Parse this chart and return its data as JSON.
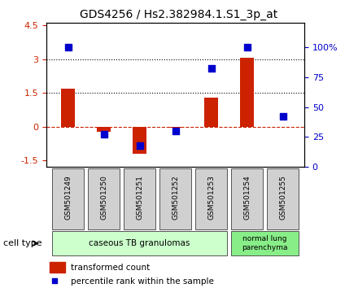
{
  "title": "GDS4256 / Hs2.382984.1.S1_3p_at",
  "samples": [
    "GSM501249",
    "GSM501250",
    "GSM501251",
    "GSM501252",
    "GSM501253",
    "GSM501254",
    "GSM501255"
  ],
  "transformed_counts": [
    1.7,
    -0.25,
    -1.2,
    -0.05,
    1.3,
    3.05,
    -0.02
  ],
  "percentile_ranks": [
    100,
    27,
    18,
    30,
    82,
    100,
    42
  ],
  "ylim_left": [
    -1.8,
    4.6
  ],
  "ylim_right": [
    0,
    120
  ],
  "yticks_left": [
    -1.5,
    0,
    1.5,
    3,
    4.5
  ],
  "yticks_right": [
    0,
    25,
    50,
    75,
    100
  ],
  "ytick_labels_left": [
    "-1.5",
    "0",
    "1.5",
    "3",
    "4.5"
  ],
  "ytick_labels_right": [
    "0",
    "25",
    "50",
    "75",
    "100%"
  ],
  "hlines": [
    3.0,
    1.5
  ],
  "dashed_zero": 0,
  "bar_color": "#cc2200",
  "dot_color": "#0000cc",
  "bar_width": 0.4,
  "group1_samples": [
    0,
    1,
    2,
    3,
    4
  ],
  "group2_samples": [
    5,
    6
  ],
  "group1_label": "caseous TB granulomas",
  "group2_label": "normal lung\nparenchyma",
  "group1_color": "#ccffcc",
  "group2_color": "#88ee88",
  "cell_type_label": "cell type",
  "legend_bar_label": "transformed count",
  "legend_dot_label": "percentile rank within the sample",
  "bg_color": "#ffffff",
  "plot_bg_color": "#ffffff",
  "spine_color": "#000000"
}
